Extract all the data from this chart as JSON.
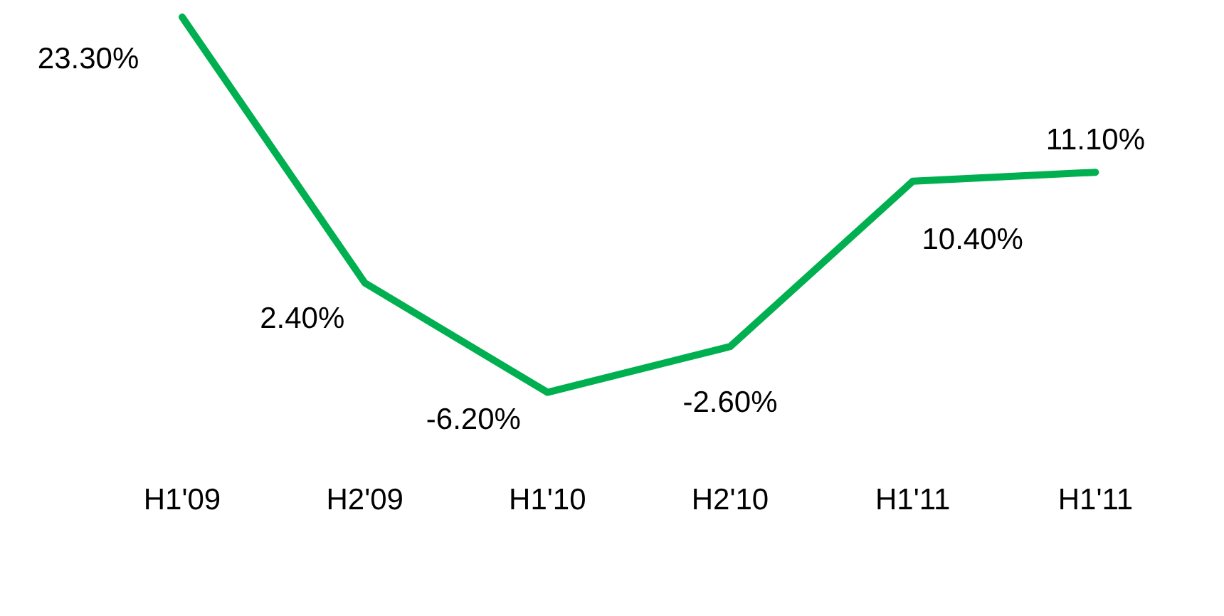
{
  "chart_data": {
    "type": "line",
    "categories": [
      "H1'09",
      "H2'09",
      "H1'10",
      "H2'10",
      "H1'11",
      "H1'11"
    ],
    "series": [
      {
        "color": "#00b050",
        "values": [
          23.3,
          2.4,
          -6.2,
          -2.6,
          10.4,
          11.1
        ],
        "value_labels": [
          "23.30%",
          "2.40%",
          "-6.20%",
          "-2.60%",
          "10.40%",
          "11.10%"
        ]
      }
    ],
    "marker": "none",
    "line_style": "solid",
    "grid": false,
    "legend": false,
    "tick_labels": "x"
  }
}
